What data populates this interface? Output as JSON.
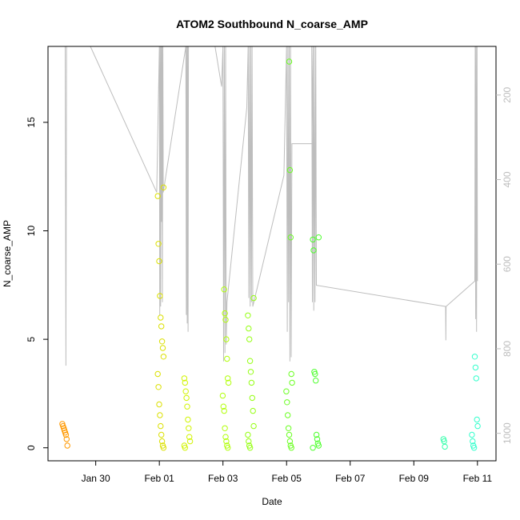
{
  "chart_data": {
    "type": "scatter",
    "title": "ATOM2 Southbound N_coarse_AMP",
    "xlabel": "Date",
    "ylabel": "N_coarse_AMP",
    "x_ticks": [
      "Jan 30",
      "Feb 01",
      "Feb 03",
      "Feb 05",
      "Feb 07",
      "Feb 09",
      "Feb 11"
    ],
    "y_ticks": [
      "0",
      "5",
      "10",
      "15"
    ],
    "y2_ticks": [
      "200",
      "400",
      "600",
      "800",
      "1000"
    ],
    "xlim": [
      "2016-01-28T12:00",
      "2016-02-11T14:00"
    ],
    "ylim": [
      -0.6,
      18.5
    ],
    "y2lim": [
      1065,
      85
    ],
    "y2_inverted": true,
    "grid": false,
    "point_color_gradient": [
      "#ff9900",
      "#ccff00",
      "#33ff33",
      "#33ffcc"
    ],
    "profile_line_color": "#bdbdbd",
    "points": [
      {
        "t": "2016-01-29T01:00",
        "y": 1.1
      },
      {
        "t": "2016-01-29T01:00",
        "y": 1.0
      },
      {
        "t": "2016-01-29T01:00",
        "y": 0.9
      },
      {
        "t": "2016-01-29T01:00",
        "y": 0.8
      },
      {
        "t": "2016-01-29T01:00",
        "y": 0.7
      },
      {
        "t": "2016-01-29T01:00",
        "y": 0.6
      },
      {
        "t": "2016-01-29T01:00",
        "y": 0.4
      },
      {
        "t": "2016-01-29T01:00",
        "y": 0.1
      },
      {
        "t": "2016-02-01T01:00",
        "y": 12.0
      },
      {
        "t": "2016-02-01T01:00",
        "y": 11.6
      },
      {
        "t": "2016-02-01T01:00",
        "y": 9.4
      },
      {
        "t": "2016-02-01T01:00",
        "y": 8.6
      },
      {
        "t": "2016-02-01T01:00",
        "y": 7.0
      },
      {
        "t": "2016-02-01T01:00",
        "y": 6.0
      },
      {
        "t": "2016-02-01T01:00",
        "y": 5.6
      },
      {
        "t": "2016-02-01T01:00",
        "y": 4.9
      },
      {
        "t": "2016-02-01T01:00",
        "y": 4.6
      },
      {
        "t": "2016-02-01T01:00",
        "y": 4.2
      },
      {
        "t": "2016-02-01T01:00",
        "y": 3.4
      },
      {
        "t": "2016-02-01T01:00",
        "y": 2.8
      },
      {
        "t": "2016-02-01T01:00",
        "y": 2.0
      },
      {
        "t": "2016-02-01T01:00",
        "y": 1.5
      },
      {
        "t": "2016-02-01T01:00",
        "y": 1.0
      },
      {
        "t": "2016-02-01T01:00",
        "y": 0.6
      },
      {
        "t": "2016-02-01T01:00",
        "y": 0.3
      },
      {
        "t": "2016-02-01T01:00",
        "y": 0.1
      },
      {
        "t": "2016-02-01T01:00",
        "y": 0.0
      },
      {
        "t": "2016-02-01T21:00",
        "y": 3.2
      },
      {
        "t": "2016-02-01T21:00",
        "y": 3.0
      },
      {
        "t": "2016-02-01T21:00",
        "y": 2.6
      },
      {
        "t": "2016-02-01T21:00",
        "y": 2.3
      },
      {
        "t": "2016-02-01T21:00",
        "y": 1.9
      },
      {
        "t": "2016-02-01T21:00",
        "y": 1.3
      },
      {
        "t": "2016-02-01T21:00",
        "y": 0.9
      },
      {
        "t": "2016-02-01T21:00",
        "y": 0.5
      },
      {
        "t": "2016-02-01T21:00",
        "y": 0.3
      },
      {
        "t": "2016-02-01T21:00",
        "y": 0.1
      },
      {
        "t": "2016-02-01T21:00",
        "y": 0.0
      },
      {
        "t": "2016-02-03T02:00",
        "y": 7.3
      },
      {
        "t": "2016-02-03T02:00",
        "y": 6.2
      },
      {
        "t": "2016-02-03T02:00",
        "y": 5.9
      },
      {
        "t": "2016-02-03T02:00",
        "y": 5.0
      },
      {
        "t": "2016-02-03T02:00",
        "y": 4.1
      },
      {
        "t": "2016-02-03T02:00",
        "y": 3.2
      },
      {
        "t": "2016-02-03T02:00",
        "y": 3.0
      },
      {
        "t": "2016-02-03T02:00",
        "y": 2.4
      },
      {
        "t": "2016-02-03T02:00",
        "y": 1.9
      },
      {
        "t": "2016-02-03T02:00",
        "y": 1.7
      },
      {
        "t": "2016-02-03T02:00",
        "y": 0.9
      },
      {
        "t": "2016-02-03T02:00",
        "y": 0.5
      },
      {
        "t": "2016-02-03T02:00",
        "y": 0.3
      },
      {
        "t": "2016-02-03T02:00",
        "y": 0.1
      },
      {
        "t": "2016-02-03T02:00",
        "y": 0.0
      },
      {
        "t": "2016-02-03T21:00",
        "y": 6.9
      },
      {
        "t": "2016-02-03T21:00",
        "y": 6.1
      },
      {
        "t": "2016-02-03T21:00",
        "y": 5.5
      },
      {
        "t": "2016-02-03T21:00",
        "y": 5.0
      },
      {
        "t": "2016-02-03T21:00",
        "y": 4.0
      },
      {
        "t": "2016-02-03T21:00",
        "y": 3.5
      },
      {
        "t": "2016-02-03T21:00",
        "y": 3.0
      },
      {
        "t": "2016-02-03T21:00",
        "y": 2.3
      },
      {
        "t": "2016-02-03T21:00",
        "y": 1.7
      },
      {
        "t": "2016-02-03T21:00",
        "y": 1.0
      },
      {
        "t": "2016-02-03T21:00",
        "y": 0.6
      },
      {
        "t": "2016-02-03T21:00",
        "y": 0.3
      },
      {
        "t": "2016-02-03T21:00",
        "y": 0.1
      },
      {
        "t": "2016-02-03T21:00",
        "y": 0.0
      },
      {
        "t": "2016-02-05T02:00",
        "y": 17.8
      },
      {
        "t": "2016-02-05T02:00",
        "y": 12.8
      },
      {
        "t": "2016-02-05T02:00",
        "y": 9.7
      },
      {
        "t": "2016-02-05T02:00",
        "y": 3.4
      },
      {
        "t": "2016-02-05T02:00",
        "y": 3.0
      },
      {
        "t": "2016-02-05T02:00",
        "y": 2.6
      },
      {
        "t": "2016-02-05T02:00",
        "y": 2.1
      },
      {
        "t": "2016-02-05T02:00",
        "y": 1.5
      },
      {
        "t": "2016-02-05T02:00",
        "y": 0.9
      },
      {
        "t": "2016-02-05T02:00",
        "y": 0.6
      },
      {
        "t": "2016-02-05T02:00",
        "y": 0.3
      },
      {
        "t": "2016-02-05T02:00",
        "y": 0.1
      },
      {
        "t": "2016-02-05T02:00",
        "y": 0.0
      },
      {
        "t": "2016-02-05T22:00",
        "y": 9.7
      },
      {
        "t": "2016-02-05T22:00",
        "y": 9.6
      },
      {
        "t": "2016-02-05T22:00",
        "y": 9.1
      },
      {
        "t": "2016-02-05T22:00",
        "y": 3.5
      },
      {
        "t": "2016-02-05T22:00",
        "y": 3.4
      },
      {
        "t": "2016-02-05T22:00",
        "y": 3.1
      },
      {
        "t": "2016-02-05T22:00",
        "y": 0.6
      },
      {
        "t": "2016-02-05T22:00",
        "y": 0.4
      },
      {
        "t": "2016-02-05T22:00",
        "y": 0.2
      },
      {
        "t": "2016-02-05T22:00",
        "y": 0.1
      },
      {
        "t": "2016-02-05T22:00",
        "y": 0.0
      },
      {
        "t": "2016-02-10T00:00",
        "y": 0.4
      },
      {
        "t": "2016-02-10T00:00",
        "y": 0.3
      },
      {
        "t": "2016-02-10T00:00",
        "y": 0.05
      },
      {
        "t": "2016-02-10T22:00",
        "y": 4.2
      },
      {
        "t": "2016-02-10T22:00",
        "y": 3.7
      },
      {
        "t": "2016-02-10T22:00",
        "y": 3.2
      },
      {
        "t": "2016-02-10T22:00",
        "y": 1.3
      },
      {
        "t": "2016-02-10T22:00",
        "y": 1.0
      },
      {
        "t": "2016-02-10T22:00",
        "y": 0.6
      },
      {
        "t": "2016-02-10T22:00",
        "y": 0.3
      },
      {
        "t": "2016-02-10T22:00",
        "y": 0.1
      },
      {
        "t": "2016-02-10T22:00",
        "y": 0.0
      }
    ],
    "profile_line": [
      [
        "2016-01-29T01:00",
        85
      ],
      [
        "2016-01-29T01:30",
        840
      ],
      [
        "2016-01-29T02:00",
        85
      ],
      [
        "2016-01-29T20:00",
        85
      ],
      [
        "2016-01-31T22:00",
        430
      ],
      [
        "2016-02-01T00:00",
        85
      ],
      [
        "2016-02-01T00:20",
        720
      ],
      [
        "2016-02-01T00:40",
        85
      ],
      [
        "2016-02-01T01:00",
        700
      ],
      [
        "2016-02-01T01:20",
        85
      ],
      [
        "2016-02-01T01:40",
        500
      ],
      [
        "2016-02-01T02:00",
        85
      ],
      [
        "2016-02-01T02:20",
        690
      ],
      [
        "2016-02-01T02:40",
        85
      ],
      [
        "2016-02-01T03:00",
        430
      ],
      [
        "2016-02-01T20:00",
        85
      ],
      [
        "2016-02-01T20:20",
        720
      ],
      [
        "2016-02-01T20:40",
        85
      ],
      [
        "2016-02-01T21:00",
        740
      ],
      [
        "2016-02-01T21:20",
        85
      ],
      [
        "2016-02-01T21:40",
        760
      ],
      [
        "2016-02-01T22:00",
        85
      ],
      [
        "2016-02-02T18:00",
        85
      ],
      [
        "2016-02-02T23:00",
        180
      ],
      [
        "2016-02-03T00:00",
        85
      ],
      [
        "2016-02-03T00:30",
        830
      ],
      [
        "2016-02-03T01:00",
        85
      ],
      [
        "2016-02-03T01:30",
        810
      ],
      [
        "2016-02-03T02:00",
        85
      ],
      [
        "2016-02-03T02:30",
        790
      ],
      [
        "2016-02-03T03:00",
        690
      ],
      [
        "2016-02-03T18:00",
        230
      ],
      [
        "2016-02-03T19:00",
        85
      ],
      [
        "2016-02-03T19:30",
        680
      ],
      [
        "2016-02-03T20:00",
        85
      ],
      [
        "2016-02-03T20:30",
        700
      ],
      [
        "2016-02-03T21:00",
        85
      ],
      [
        "2016-02-03T21:30",
        690
      ],
      [
        "2016-02-03T22:00",
        85
      ],
      [
        "2016-02-03T22:30",
        700
      ],
      [
        "2016-02-04T22:00",
        390
      ],
      [
        "2016-02-05T00:00",
        85
      ],
      [
        "2016-02-05T00:30",
        760
      ],
      [
        "2016-02-05T01:00",
        85
      ],
      [
        "2016-02-05T01:30",
        690
      ],
      [
        "2016-02-05T02:00",
        85
      ],
      [
        "2016-02-05T02:30",
        830
      ],
      [
        "2016-02-05T03:00",
        85
      ],
      [
        "2016-02-05T03:30",
        820
      ],
      [
        "2016-02-05T04:00",
        315
      ],
      [
        "2016-02-05T20:00",
        315
      ],
      [
        "2016-02-05T19:00",
        85
      ],
      [
        "2016-02-05T19:30",
        690
      ],
      [
        "2016-02-05T20:00",
        85
      ],
      [
        "2016-02-05T20:30",
        710
      ],
      [
        "2016-02-05T21:00",
        85
      ],
      [
        "2016-02-05T21:30",
        690
      ],
      [
        "2016-02-05T22:00",
        85
      ],
      [
        "2016-02-05T22:30",
        650
      ],
      [
        "2016-02-10T00:00",
        700
      ],
      [
        "2016-02-10T00:10",
        780
      ],
      [
        "2016-02-10T00:20",
        700
      ],
      [
        "2016-02-10T22:00",
        640
      ],
      [
        "2016-02-10T22:20",
        85
      ],
      [
        "2016-02-10T22:40",
        730
      ],
      [
        "2016-02-10T23:00",
        85
      ],
      [
        "2016-02-10T23:20",
        760
      ],
      [
        "2016-02-10T23:40",
        85
      ],
      [
        "2016-02-11T00:00",
        640
      ]
    ]
  }
}
